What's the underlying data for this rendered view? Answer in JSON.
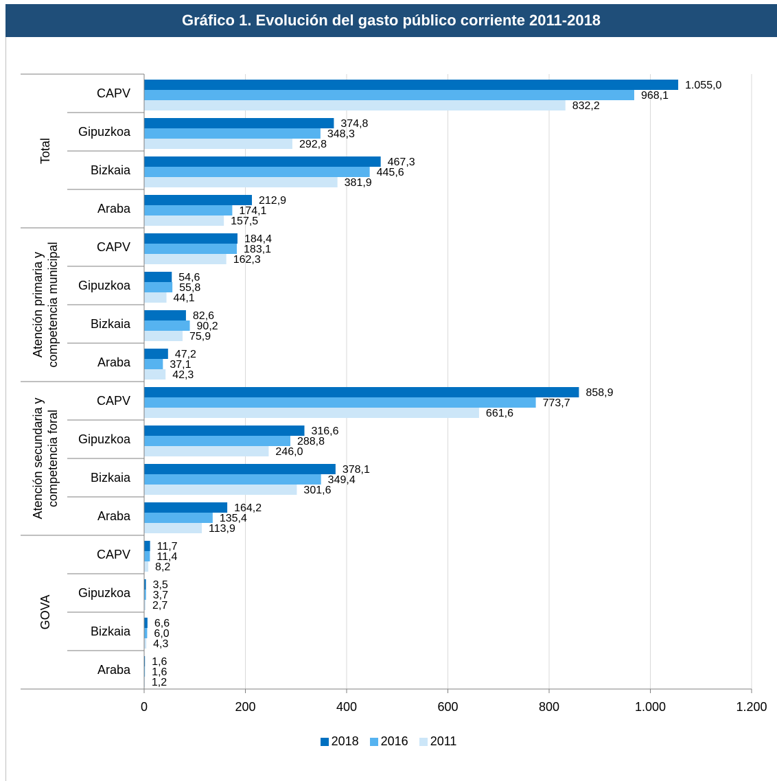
{
  "title": "Gráfico 1. Evolución del gasto público corriente 2011-2018",
  "colors": {
    "header_bg": "#1f4e79",
    "header_text": "#ffffff"
  },
  "chart_data": {
    "type": "bar",
    "orientation": "horizontal",
    "groups": [
      {
        "name": "Total",
        "categories": [
          "CAPV",
          "Gipuzkoa",
          "Bizkaia",
          "Araba"
        ]
      },
      {
        "name": "Atención primaria y competencia municipal",
        "name_lines": [
          "Atención primaria y",
          "competencia municipal"
        ],
        "categories": [
          "CAPV",
          "Gipuzkoa",
          "Bizkaia",
          "Araba"
        ]
      },
      {
        "name": "Atención secundaria y competencia foral",
        "name_lines": [
          "Atención secundaria y",
          "competencia foral"
        ],
        "categories": [
          "CAPV",
          "Gipuzkoa",
          "Bizkaia",
          "Araba"
        ]
      },
      {
        "name": "GOVA",
        "categories": [
          "CAPV",
          "Gipuzkoa",
          "Bizkaia",
          "Araba"
        ]
      }
    ],
    "series": [
      {
        "name": "2018",
        "color": "#0070c0",
        "values": [
          1055.0,
          374.8,
          467.3,
          212.9,
          184.4,
          54.6,
          82.6,
          47.2,
          858.9,
          316.6,
          378.1,
          164.2,
          11.7,
          3.5,
          6.6,
          1.6
        ],
        "labels": [
          "1.055,0",
          "374,8",
          "467,3",
          "212,9",
          "184,4",
          "54,6",
          "82,6",
          "47,2",
          "858,9",
          "316,6",
          "378,1",
          "164,2",
          "11,7",
          "3,5",
          "6,6",
          "1,6"
        ]
      },
      {
        "name": "2016",
        "color": "#56b3f0",
        "values": [
          968.1,
          348.3,
          445.6,
          174.1,
          183.1,
          55.8,
          90.2,
          37.1,
          773.7,
          288.8,
          349.4,
          135.4,
          11.4,
          3.7,
          6.0,
          1.6
        ],
        "labels": [
          "968,1",
          "348,3",
          "445,6",
          "174,1",
          "183,1",
          "55,8",
          "90,2",
          "37,1",
          "773,7",
          "288,8",
          "349,4",
          "135,4",
          "11,4",
          "3,7",
          "6,0",
          "1,6"
        ]
      },
      {
        "name": "2011",
        "color": "#cce6f8",
        "values": [
          832.2,
          292.8,
          381.9,
          157.5,
          162.3,
          44.1,
          75.9,
          42.3,
          661.6,
          246.0,
          301.6,
          113.9,
          8.2,
          2.7,
          4.3,
          1.2
        ],
        "labels": [
          "832,2",
          "292,8",
          "381,9",
          "157,5",
          "162,3",
          "44,1",
          "75,9",
          "42,3",
          "661,6",
          "246,0",
          "301,6",
          "113,9",
          "8,2",
          "2,7",
          "4,3",
          "1,2"
        ]
      }
    ],
    "xlim": [
      0,
      1200
    ],
    "xticks": [
      0,
      200,
      400,
      600,
      800,
      1000,
      1200
    ],
    "xtick_labels": [
      "0",
      "200",
      "400",
      "600",
      "800",
      "1.000",
      "1.200"
    ],
    "grid": true,
    "legend": "bottom"
  }
}
